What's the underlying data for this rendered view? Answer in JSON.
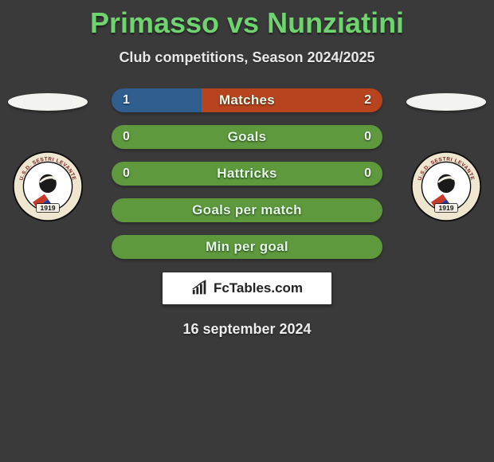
{
  "title": {
    "left": "Primasso",
    "vs": " vs ",
    "right": "Nunziatini",
    "color": "#6fd46f",
    "fontsize": 36
  },
  "subtitle": "Club competitions, Season 2024/2025",
  "date": "16 september 2024",
  "colors": {
    "background": "#3a3a3a",
    "bar_left": "#2f5e8f",
    "bar_right": "#b8441f",
    "bar_empty": "#5e9a3d",
    "bar_label": "#e4f8e6",
    "value_text": "#f0f0f0"
  },
  "bars": [
    {
      "label": "Matches",
      "left": "1",
      "right": "2",
      "left_pct": 33.3,
      "right_pct": 66.7,
      "show_values": true,
      "split": true
    },
    {
      "label": "Goals",
      "left": "0",
      "right": "0",
      "left_pct": 0,
      "right_pct": 0,
      "show_values": true,
      "split": false
    },
    {
      "label": "Hattricks",
      "left": "0",
      "right": "0",
      "left_pct": 0,
      "right_pct": 0,
      "show_values": true,
      "split": false
    },
    {
      "label": "Goals per match",
      "left": "",
      "right": "",
      "left_pct": 0,
      "right_pct": 0,
      "show_values": false,
      "split": false
    },
    {
      "label": "Min per goal",
      "left": "",
      "right": "",
      "left_pct": 0,
      "right_pct": 0,
      "show_values": false,
      "split": false
    }
  ],
  "watermark": "FcTables.com",
  "crest": {
    "top_text": "U.S.D. SESTRI LEVANTE",
    "year": "1919",
    "outer_ring": "#efe6d0",
    "ring_text": "#7a2020",
    "inner_bg": "#ffffff",
    "stripe1": "#c73a2a",
    "stripe2": "#2a3a9c",
    "head_fill": "#1a1a1a",
    "bandana": "#f5f0e6"
  }
}
